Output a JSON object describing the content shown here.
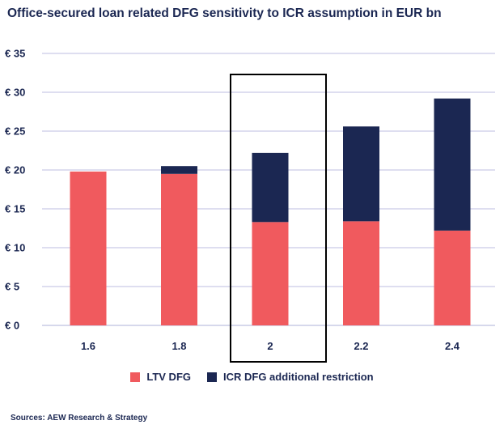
{
  "title": "Office-secured loan related DFG sensitivity to ICR assumption in EUR bn",
  "source": "Sources: AEW Research & Strategy",
  "colors": {
    "ltv": "#f05a5e",
    "icr": "#1b2752",
    "grid": "#c9cbe6",
    "highlight_border": "#000000"
  },
  "chart_data": {
    "type": "bar",
    "stacked": true,
    "categories": [
      "1.6",
      "1.8",
      "2",
      "2.2",
      "2.4"
    ],
    "series": [
      {
        "name": "LTV DFG",
        "values": [
          19.8,
          19.5,
          13.3,
          13.4,
          12.2
        ]
      },
      {
        "name": "ICR DFG additional restriction",
        "values": [
          0,
          1.0,
          8.9,
          12.2,
          17.0
        ]
      }
    ],
    "y_tick_labels": [
      "€ 0",
      "€ 5",
      "€ 10",
      "€ 15",
      "€ 20",
      "€ 25",
      "€ 30",
      "€ 35"
    ],
    "ylim": [
      0,
      35
    ],
    "y_step": 5,
    "highlighted_category": "2",
    "grid": true,
    "legend_position": "bottom"
  }
}
